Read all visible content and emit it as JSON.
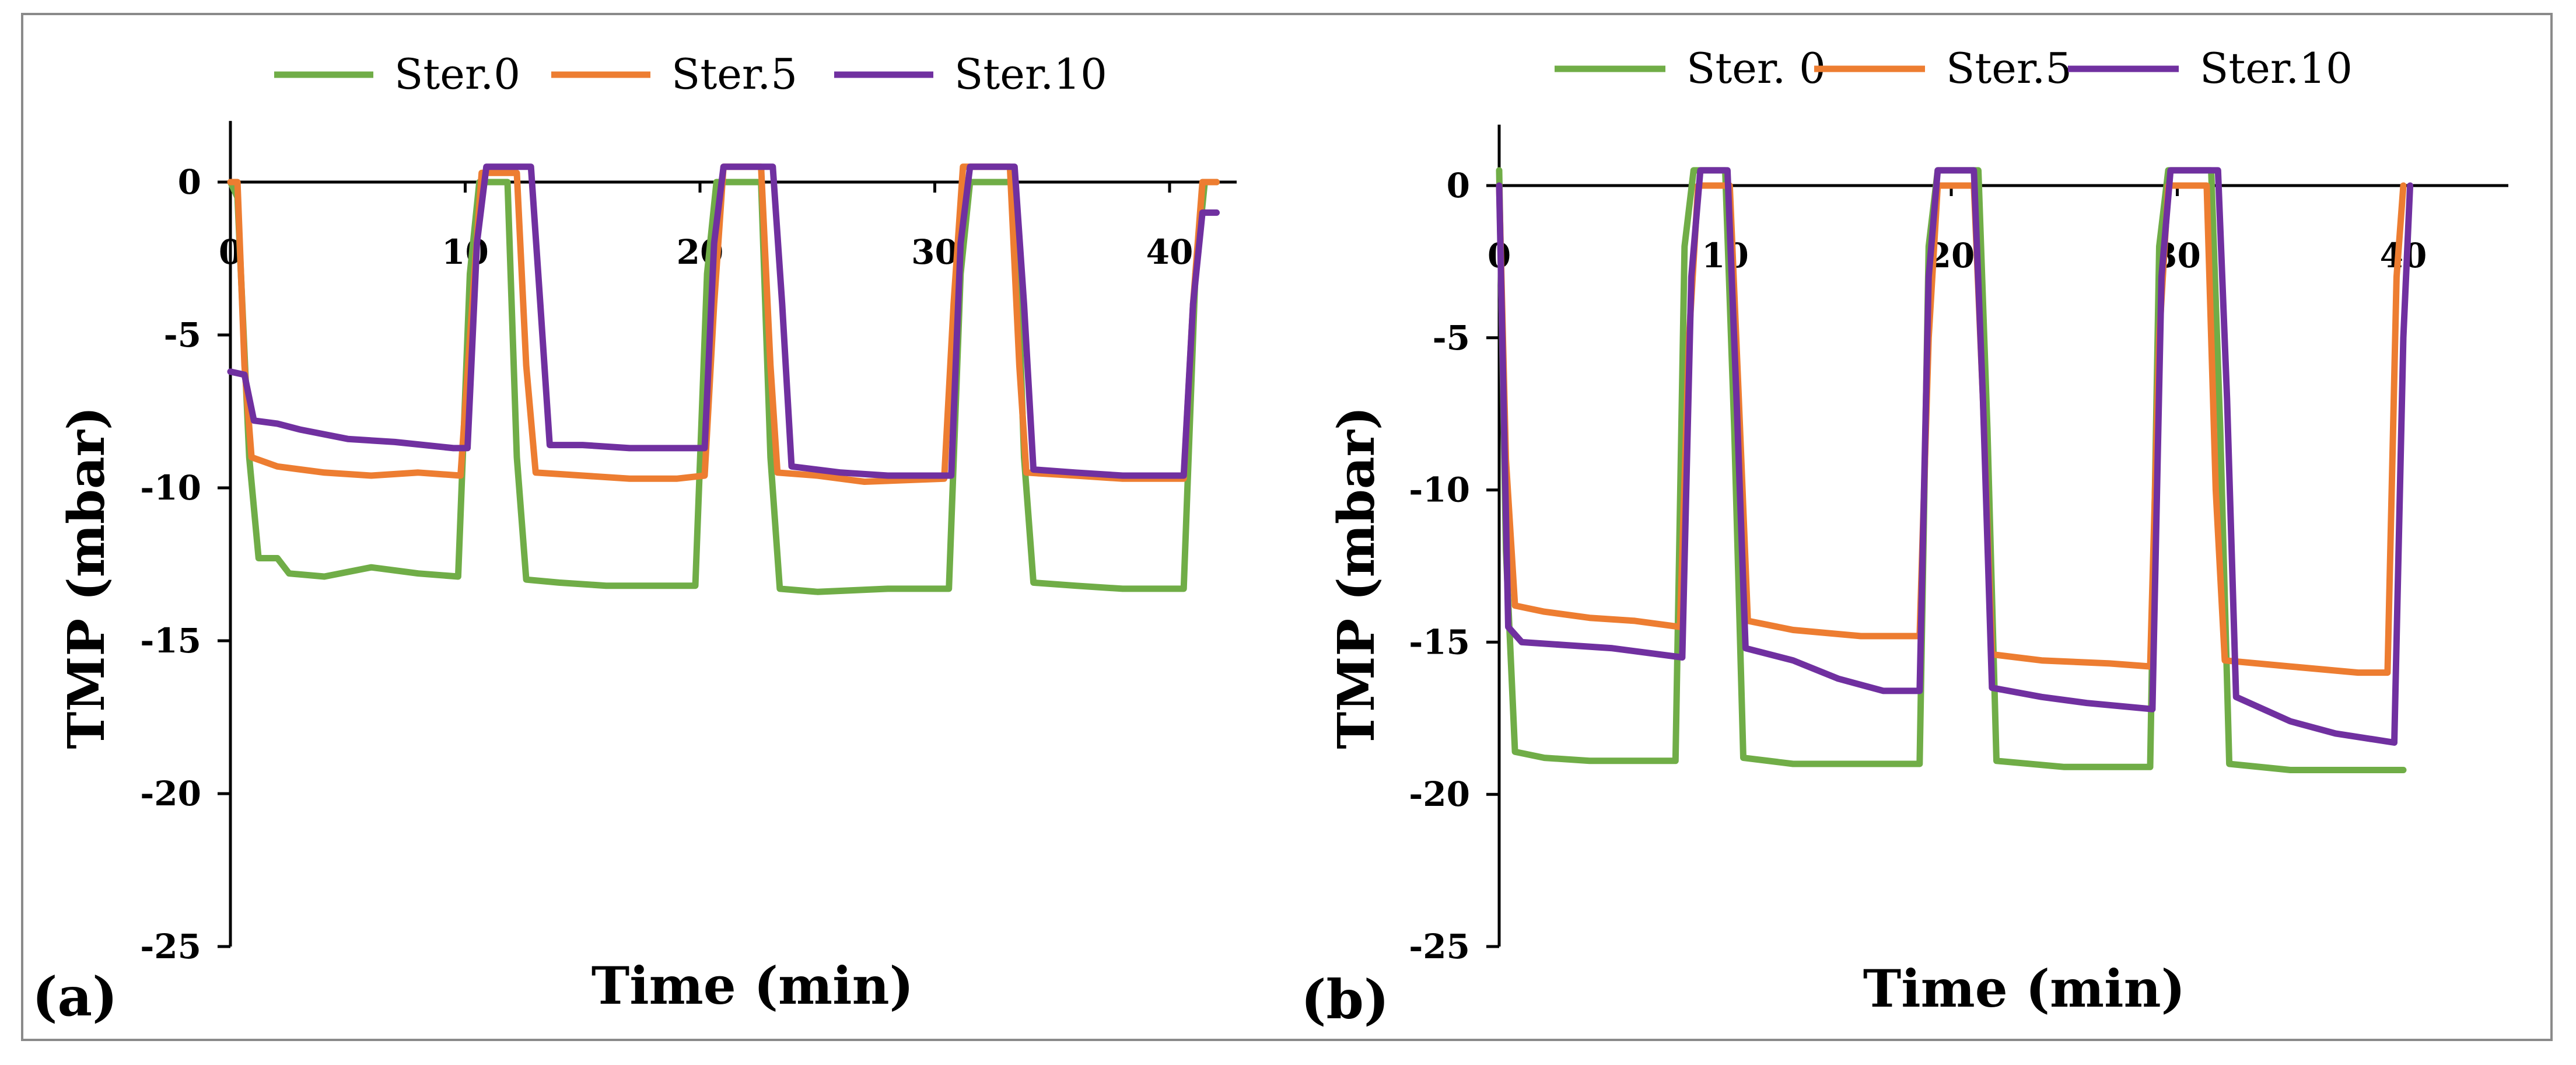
{
  "chart_data": [
    {
      "type": "line",
      "panel_label": "(a)",
      "xlabel": "Time (min)",
      "ylabel": "TMP (mbar)",
      "xlim": [
        0,
        43
      ],
      "ylim": [
        -25,
        2
      ],
      "x_ticks": [
        0,
        10,
        20,
        30,
        40
      ],
      "y_ticks": [
        0,
        -5,
        -10,
        -15,
        -20,
        -25
      ],
      "grid": false,
      "legend": "top",
      "series": [
        {
          "name": "Ster.0",
          "color": "#70ad47",
          "points": [
            [
              0,
              0
            ],
            [
              0.3,
              -0.5
            ],
            [
              0.8,
              -9
            ],
            [
              1.2,
              -12.3
            ],
            [
              2,
              -12.3
            ],
            [
              2.5,
              -12.8
            ],
            [
              4,
              -12.9
            ],
            [
              6,
              -12.6
            ],
            [
              8,
              -12.8
            ],
            [
              9.7,
              -12.9
            ],
            [
              10.2,
              -3
            ],
            [
              10.6,
              0
            ],
            [
              11.8,
              0
            ],
            [
              12.2,
              -9
            ],
            [
              12.6,
              -13
            ],
            [
              14,
              -13.1
            ],
            [
              16,
              -13.2
            ],
            [
              18,
              -13.2
            ],
            [
              19.8,
              -13.2
            ],
            [
              20.3,
              -3
            ],
            [
              20.7,
              0
            ],
            [
              22.6,
              0
            ],
            [
              23,
              -9
            ],
            [
              23.4,
              -13.3
            ],
            [
              25,
              -13.4
            ],
            [
              28,
              -13.3
            ],
            [
              30.6,
              -13.3
            ],
            [
              31.1,
              -3
            ],
            [
              31.5,
              0
            ],
            [
              33.4,
              0
            ],
            [
              33.8,
              -9
            ],
            [
              34.2,
              -13.1
            ],
            [
              36,
              -13.2
            ],
            [
              38,
              -13.3
            ],
            [
              40.6,
              -13.3
            ],
            [
              41.1,
              -3
            ],
            [
              41.5,
              0
            ],
            [
              42,
              0
            ]
          ]
        },
        {
          "name": "Ster.5",
          "color": "#ed7d31",
          "points": [
            [
              0,
              0
            ],
            [
              0.3,
              0
            ],
            [
              0.6,
              -6
            ],
            [
              0.9,
              -9
            ],
            [
              2,
              -9.3
            ],
            [
              4,
              -9.5
            ],
            [
              6,
              -9.6
            ],
            [
              8,
              -9.5
            ],
            [
              9.8,
              -9.6
            ],
            [
              10.3,
              -4
            ],
            [
              10.7,
              0.3
            ],
            [
              12.2,
              0.3
            ],
            [
              12.6,
              -6
            ],
            [
              13,
              -9.5
            ],
            [
              15,
              -9.6
            ],
            [
              17,
              -9.7
            ],
            [
              19,
              -9.7
            ],
            [
              20.2,
              -9.6
            ],
            [
              20.6,
              -4
            ],
            [
              21,
              0.5
            ],
            [
              22.6,
              0.5
            ],
            [
              23,
              -6
            ],
            [
              23.3,
              -9.5
            ],
            [
              25,
              -9.6
            ],
            [
              27,
              -9.8
            ],
            [
              30.4,
              -9.7
            ],
            [
              30.8,
              -4
            ],
            [
              31.2,
              0.5
            ],
            [
              33.2,
              0.5
            ],
            [
              33.6,
              -6
            ],
            [
              33.9,
              -9.5
            ],
            [
              36,
              -9.6
            ],
            [
              38,
              -9.7
            ],
            [
              40.6,
              -9.7
            ],
            [
              41,
              -4
            ],
            [
              41.4,
              0
            ],
            [
              42,
              0
            ]
          ]
        },
        {
          "name": "Ster.10",
          "color": "#7030a0",
          "points": [
            [
              0,
              -6.2
            ],
            [
              0.6,
              -6.3
            ],
            [
              1,
              -7.8
            ],
            [
              2,
              -7.9
            ],
            [
              3,
              -8.1
            ],
            [
              5,
              -8.4
            ],
            [
              7,
              -8.5
            ],
            [
              9.5,
              -8.7
            ],
            [
              10.1,
              -8.7
            ],
            [
              10.5,
              -2
            ],
            [
              10.9,
              0.5
            ],
            [
              12.8,
              0.5
            ],
            [
              13.2,
              -4
            ],
            [
              13.6,
              -8.6
            ],
            [
              15,
              -8.6
            ],
            [
              17,
              -8.7
            ],
            [
              19,
              -8.7
            ],
            [
              20.2,
              -8.7
            ],
            [
              20.6,
              -2
            ],
            [
              21,
              0.5
            ],
            [
              23.1,
              0.5
            ],
            [
              23.5,
              -4
            ],
            [
              23.9,
              -9.3
            ],
            [
              26,
              -9.5
            ],
            [
              28,
              -9.6
            ],
            [
              30.7,
              -9.6
            ],
            [
              31.1,
              -2
            ],
            [
              31.5,
              0.5
            ],
            [
              33.4,
              0.5
            ],
            [
              33.8,
              -4
            ],
            [
              34.2,
              -9.4
            ],
            [
              36,
              -9.5
            ],
            [
              38,
              -9.6
            ],
            [
              40.6,
              -9.6
            ],
            [
              41,
              -4
            ],
            [
              41.4,
              -1
            ],
            [
              42,
              -1
            ]
          ]
        }
      ]
    },
    {
      "type": "line",
      "panel_label": "(b)",
      "xlabel": "Time (min)",
      "ylabel": "TMP (mbar)",
      "xlim": [
        0,
        45
      ],
      "ylim": [
        -25,
        2
      ],
      "x_ticks": [
        0,
        10,
        20,
        30,
        40
      ],
      "y_ticks": [
        0,
        -5,
        -10,
        -15,
        -20,
        -25
      ],
      "grid": false,
      "legend": "top",
      "series": [
        {
          "name": "Ster. 0",
          "color": "#70ad47",
          "points": [
            [
              0,
              0.5
            ],
            [
              0.3,
              -12
            ],
            [
              0.7,
              -18.6
            ],
            [
              2,
              -18.8
            ],
            [
              4,
              -18.9
            ],
            [
              7.8,
              -18.9
            ],
            [
              8.2,
              -2
            ],
            [
              8.6,
              0.5
            ],
            [
              10,
              0.5
            ],
            [
              10.4,
              -8
            ],
            [
              10.8,
              -18.8
            ],
            [
              13,
              -19
            ],
            [
              16,
              -19
            ],
            [
              18.6,
              -19
            ],
            [
              19,
              -2
            ],
            [
              19.4,
              0.5
            ],
            [
              21.2,
              0.5
            ],
            [
              21.6,
              -8
            ],
            [
              22,
              -18.9
            ],
            [
              25,
              -19.1
            ],
            [
              28.8,
              -19.1
            ],
            [
              29.2,
              -2
            ],
            [
              29.6,
              0.5
            ],
            [
              31.5,
              0.5
            ],
            [
              31.9,
              -8
            ],
            [
              32.3,
              -19
            ],
            [
              35,
              -19.2
            ],
            [
              38,
              -19.2
            ],
            [
              39.6,
              -19.2
            ],
            [
              40,
              -19.2
            ]
          ]
        },
        {
          "name": "Ster.5",
          "color": "#ed7d31",
          "points": [
            [
              0,
              0
            ],
            [
              0.3,
              -9
            ],
            [
              0.7,
              -13.8
            ],
            [
              2,
              -14
            ],
            [
              4,
              -14.2
            ],
            [
              6,
              -14.3
            ],
            [
              8,
              -14.5
            ],
            [
              8.4,
              -5
            ],
            [
              8.8,
              0
            ],
            [
              10.2,
              0
            ],
            [
              10.6,
              -7
            ],
            [
              11,
              -14.3
            ],
            [
              13,
              -14.6
            ],
            [
              16,
              -14.8
            ],
            [
              18.6,
              -14.8
            ],
            [
              19,
              -5
            ],
            [
              19.4,
              0
            ],
            [
              21,
              0
            ],
            [
              21.4,
              -7
            ],
            [
              21.8,
              -15.4
            ],
            [
              24,
              -15.6
            ],
            [
              27,
              -15.7
            ],
            [
              28.8,
              -15.8
            ],
            [
              29.2,
              -5
            ],
            [
              29.6,
              0
            ],
            [
              31.3,
              0
            ],
            [
              31.7,
              -10
            ],
            [
              32.1,
              -15.6
            ],
            [
              35,
              -15.8
            ],
            [
              38,
              -16
            ],
            [
              39.3,
              -16
            ],
            [
              39.7,
              -3
            ],
            [
              40,
              0
            ]
          ]
        },
        {
          "name": "Ster.10",
          "color": "#7030a0",
          "points": [
            [
              0,
              0
            ],
            [
              0.4,
              -14.5
            ],
            [
              1,
              -15
            ],
            [
              3,
              -15.1
            ],
            [
              5,
              -15.2
            ],
            [
              8.1,
              -15.5
            ],
            [
              8.5,
              -3
            ],
            [
              8.9,
              0.5
            ],
            [
              10.1,
              0.5
            ],
            [
              10.5,
              -7
            ],
            [
              10.9,
              -15.2
            ],
            [
              13,
              -15.6
            ],
            [
              15,
              -16.2
            ],
            [
              17,
              -16.6
            ],
            [
              18.6,
              -16.6
            ],
            [
              19,
              -3
            ],
            [
              19.4,
              0.5
            ],
            [
              21,
              0.5
            ],
            [
              21.4,
              -7
            ],
            [
              21.8,
              -16.5
            ],
            [
              24,
              -16.8
            ],
            [
              26,
              -17
            ],
            [
              28.9,
              -17.2
            ],
            [
              29.3,
              -3
            ],
            [
              29.7,
              0.5
            ],
            [
              31.8,
              0.5
            ],
            [
              32.2,
              -7
            ],
            [
              32.6,
              -16.8
            ],
            [
              35,
              -17.6
            ],
            [
              37,
              -18
            ],
            [
              39.6,
              -18.3
            ],
            [
              40,
              -5
            ],
            [
              40.3,
              0
            ]
          ]
        }
      ]
    }
  ]
}
